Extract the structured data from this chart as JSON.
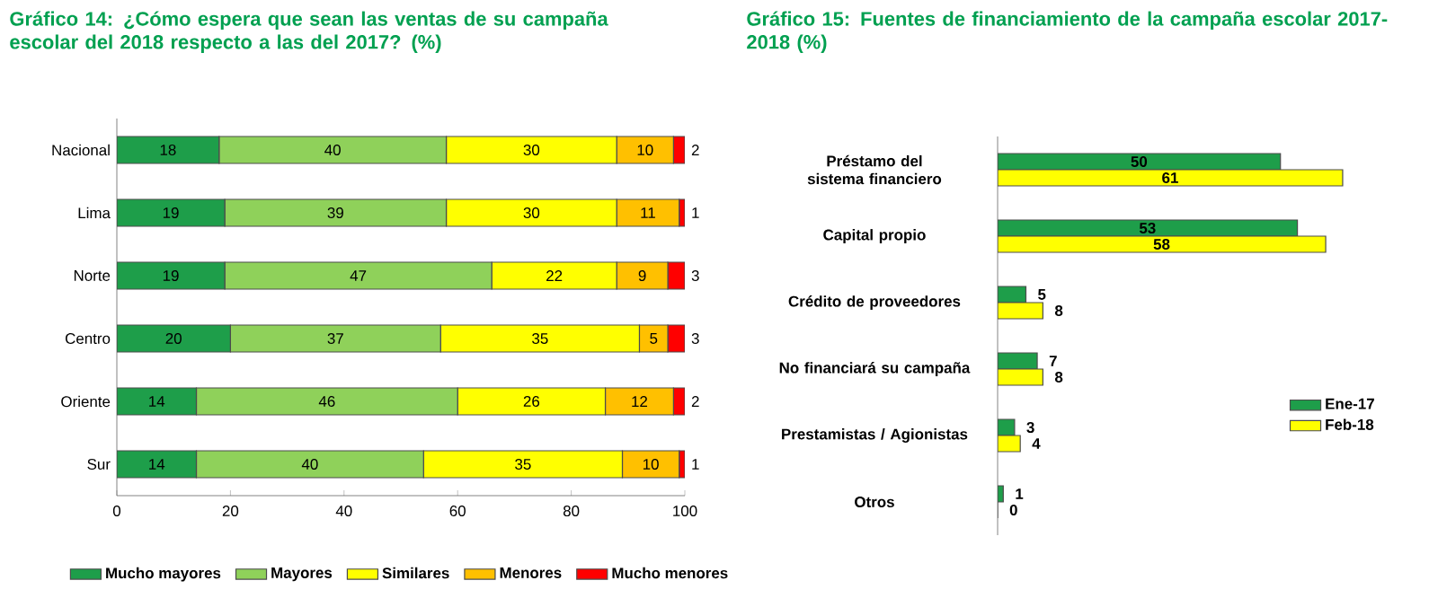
{
  "chart_data": [
    {
      "type": "bar",
      "orientation": "horizontal",
      "stacked": true,
      "title": "Gráfico 14: ¿Cómo espera que sean las ventas de su campaña escolar del 2018 respecto a las del 2017? (%)",
      "categories": [
        "Nacional",
        "Lima",
        "Norte",
        "Centro",
        "Oriente",
        "Sur"
      ],
      "series": [
        {
          "name": "Mucho mayores",
          "color": "#1e9e4a",
          "values": [
            18,
            19,
            19,
            20,
            14,
            14
          ]
        },
        {
          "name": "Mayores",
          "color": "#8fd15a",
          "values": [
            40,
            39,
            47,
            37,
            46,
            40
          ]
        },
        {
          "name": "Similares",
          "color": "#ffff00",
          "values": [
            30,
            30,
            22,
            35,
            26,
            35
          ]
        },
        {
          "name": "Menores",
          "color": "#ffc000",
          "values": [
            10,
            11,
            9,
            5,
            12,
            10
          ]
        },
        {
          "name": "Mucho menores",
          "color": "#ff0000",
          "values": [
            2,
            1,
            3,
            3,
            2,
            1
          ]
        }
      ],
      "xlim": [
        0,
        100
      ],
      "xticks": [
        0,
        20,
        40,
        60,
        80,
        100
      ],
      "legend": "bottom",
      "data_labels": true
    },
    {
      "type": "bar",
      "orientation": "horizontal",
      "title": "Gráfico 15: Fuentes de financiamiento de la campaña escolar 2017-2018 (%)",
      "categories": [
        "Préstamo del sistema financiero",
        "Capital propio",
        "Crédito de proveedores",
        "No financiará su campaña",
        "Prestamistas / Agionistas",
        "Otros"
      ],
      "series": [
        {
          "name": "Ene-17",
          "color": "#1e9e4a",
          "values": [
            50,
            53,
            5,
            7,
            3,
            1
          ]
        },
        {
          "name": "Feb-18",
          "color": "#ffff00",
          "values": [
            61,
            58,
            8,
            8,
            4,
            0
          ]
        }
      ],
      "legend": "right",
      "data_labels": true
    }
  ]
}
